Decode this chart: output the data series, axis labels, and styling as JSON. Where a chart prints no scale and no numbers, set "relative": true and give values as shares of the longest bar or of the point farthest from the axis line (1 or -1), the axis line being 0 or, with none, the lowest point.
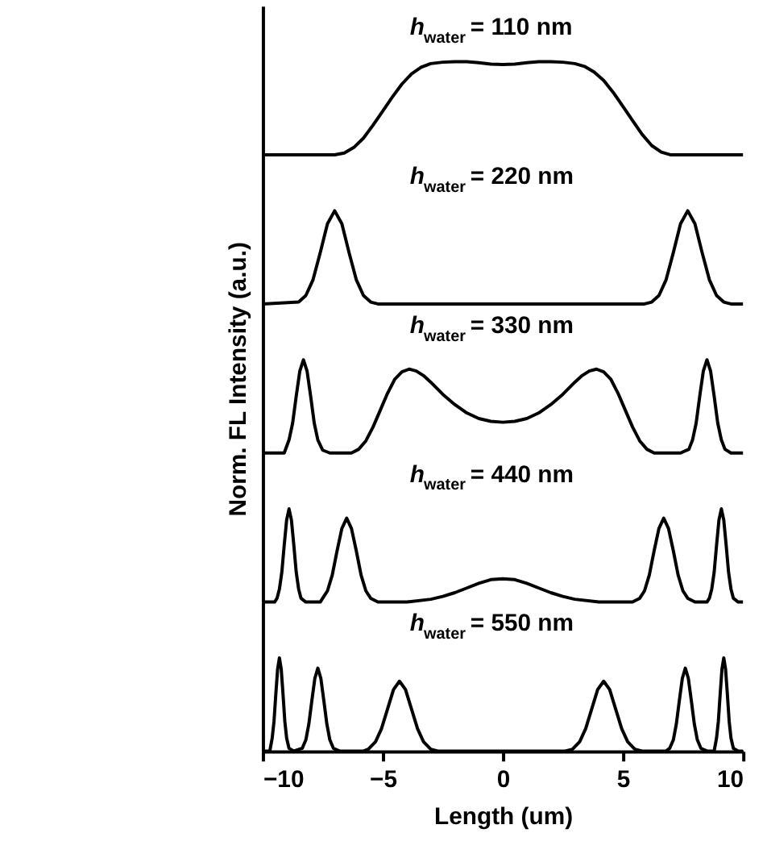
{
  "chart_data": [
    {
      "type": "line",
      "relative": true,
      "title": "h$_{water}$ = 110 nm",
      "color": "#000000",
      "xlim": [
        -10,
        10
      ],
      "tick_labels": false,
      "grid": false,
      "x": [
        -10,
        -7,
        -6.6,
        -6.2,
        -5.8,
        -5.4,
        -5,
        -4.6,
        -4.2,
        -3.8,
        -3.4,
        -3,
        -2.5,
        -2,
        -1.5,
        -1,
        -0.5,
        0,
        0.5,
        1,
        1.5,
        2,
        2.5,
        3,
        3.4,
        3.8,
        4.2,
        4.6,
        5,
        5.4,
        5.8,
        6.2,
        6.6,
        7,
        10
      ],
      "values": [
        0,
        0,
        0.02,
        0.08,
        0.18,
        0.32,
        0.47,
        0.62,
        0.76,
        0.87,
        0.94,
        0.98,
        0.995,
        1,
        1,
        0.99,
        0.975,
        0.97,
        0.975,
        0.99,
        1,
        1,
        0.995,
        0.98,
        0.95,
        0.89,
        0.8,
        0.67,
        0.52,
        0.37,
        0.22,
        0.1,
        0.03,
        0,
        0
      ]
    },
    {
      "type": "line",
      "relative": true,
      "title": "h$_{water}$ = 220 nm",
      "color": "#000000",
      "xlim": [
        -10,
        10
      ],
      "tick_labels": false,
      "grid": false,
      "x": [
        -10,
        -8.5,
        -8.2,
        -7.9,
        -7.6,
        -7.3,
        -7,
        -6.7,
        -6.4,
        -6.1,
        -5.8,
        -5.5,
        -5.2,
        5.9,
        6.2,
        6.5,
        6.8,
        7.1,
        7.4,
        7.7,
        8,
        8.3,
        8.6,
        8.9,
        9.2,
        9.5,
        10
      ],
      "values": [
        0,
        0.02,
        0.09,
        0.26,
        0.55,
        0.86,
        1,
        0.86,
        0.55,
        0.26,
        0.09,
        0.02,
        0,
        0,
        0.02,
        0.09,
        0.26,
        0.55,
        0.86,
        1,
        0.86,
        0.55,
        0.26,
        0.09,
        0.02,
        0,
        0
      ]
    },
    {
      "type": "line",
      "relative": true,
      "title": "h$_{water}$ = 330 nm",
      "ylabel": "Norm. FL Intensity (a.u.)",
      "color": "#000000",
      "xlim": [
        -10,
        10
      ],
      "tick_labels": false,
      "grid": false,
      "x": [
        -10,
        -9.1,
        -8.9,
        -8.75,
        -8.6,
        -8.45,
        -8.3,
        -8.15,
        -8,
        -7.85,
        -7.7,
        -7.5,
        -7.2,
        -6.3,
        -6,
        -5.7,
        -5.4,
        -5.1,
        -4.8,
        -4.5,
        -4.2,
        -3.9,
        -3.6,
        -3.3,
        -3,
        -2.5,
        -2,
        -1.5,
        -1,
        -0.5,
        0,
        0.5,
        1,
        1.5,
        2,
        2.5,
        3,
        3.3,
        3.6,
        3.9,
        4.2,
        4.5,
        4.8,
        5.1,
        5.4,
        5.7,
        6,
        6.3,
        7.4,
        7.75,
        7.9,
        8.05,
        8.2,
        8.35,
        8.5,
        8.65,
        8.8,
        8.95,
        9.1,
        9.25,
        9.5,
        10
      ],
      "values": [
        0,
        0,
        0.14,
        0.32,
        0.61,
        0.88,
        1,
        0.88,
        0.61,
        0.32,
        0.14,
        0.03,
        0,
        0,
        0.04,
        0.13,
        0.28,
        0.46,
        0.64,
        0.79,
        0.87,
        0.9,
        0.88,
        0.83,
        0.76,
        0.63,
        0.52,
        0.43,
        0.37,
        0.34,
        0.33,
        0.34,
        0.37,
        0.43,
        0.52,
        0.63,
        0.76,
        0.83,
        0.88,
        0.9,
        0.87,
        0.79,
        0.64,
        0.46,
        0.28,
        0.13,
        0.04,
        0,
        0,
        0.04,
        0.14,
        0.32,
        0.61,
        0.88,
        1,
        0.88,
        0.61,
        0.32,
        0.14,
        0.04,
        0,
        0
      ]
    },
    {
      "type": "line",
      "relative": true,
      "title": "h$_{water}$ = 440 nm",
      "color": "#000000",
      "xlim": [
        -10,
        10
      ],
      "tick_labels": false,
      "grid": false,
      "x": [
        -10,
        -9.5,
        -9.4,
        -9.3,
        -9.2,
        -9.1,
        -9,
        -8.9,
        -8.8,
        -8.7,
        -8.6,
        -8.5,
        -8.4,
        -8.2,
        -7.6,
        -7.5,
        -7.3,
        -7.1,
        -6.9,
        -6.7,
        -6.5,
        -6.3,
        -6.1,
        -5.9,
        -5.7,
        -5.5,
        -5.2,
        -4,
        -3,
        -2.5,
        -2,
        -1.5,
        -1,
        -0.5,
        0,
        0.5,
        1,
        1.5,
        2,
        2.5,
        3,
        4,
        5.4,
        5.7,
        5.9,
        6.1,
        6.3,
        6.5,
        6.7,
        6.9,
        7.1,
        7.3,
        7.5,
        7.7,
        8,
        8.5,
        8.6,
        8.7,
        8.8,
        8.9,
        9,
        9.1,
        9.2,
        9.3,
        9.4,
        9.5,
        9.6,
        9.8,
        10
      ],
      "values": [
        0,
        0,
        0.04,
        0.14,
        0.32,
        0.61,
        0.88,
        1,
        0.88,
        0.61,
        0.32,
        0.14,
        0.04,
        0,
        0,
        0.04,
        0.12,
        0.29,
        0.55,
        0.79,
        0.9,
        0.79,
        0.55,
        0.29,
        0.12,
        0.04,
        0,
        0,
        0.03,
        0.06,
        0.1,
        0.15,
        0.2,
        0.24,
        0.25,
        0.24,
        0.2,
        0.15,
        0.1,
        0.06,
        0.03,
        0,
        0,
        0.04,
        0.12,
        0.29,
        0.55,
        0.79,
        0.9,
        0.79,
        0.55,
        0.29,
        0.12,
        0.04,
        0,
        0,
        0.04,
        0.14,
        0.32,
        0.61,
        0.88,
        1,
        0.88,
        0.61,
        0.32,
        0.14,
        0.04,
        0,
        0
      ]
    },
    {
      "type": "line",
      "relative": true,
      "title": "h$_{water}$ = 550 nm",
      "xlabel": "Length (um)",
      "color": "#000000",
      "xlim": [
        -10,
        10
      ],
      "xticks": [
        -10,
        -5,
        0,
        5,
        10
      ],
      "tick_labels": "x",
      "grid": false,
      "x": [
        -10,
        -9.7,
        -9.6,
        -9.525,
        -9.45,
        -9.375,
        -9.3,
        -9.225,
        -9.15,
        -9.075,
        -9,
        -8.9,
        -8.7,
        -8.35,
        -8.2,
        -8.075,
        -7.95,
        -7.825,
        -7.7,
        -7.575,
        -7.45,
        -7.325,
        -7.2,
        -7.05,
        -6.8,
        -5.8,
        -5.6,
        -5.3,
        -5.05,
        -4.8,
        -4.55,
        -4.3,
        -4.05,
        -3.8,
        -3.55,
        -3.3,
        -3,
        -2.7,
        2.6,
        2.9,
        3.2,
        3.45,
        3.7,
        3.95,
        4.2,
        4.45,
        4.7,
        4.95,
        5.2,
        5.5,
        5.8,
        6.8,
        6.95,
        7.1,
        7.225,
        7.35,
        7.475,
        7.6,
        7.725,
        7.85,
        7.975,
        8.1,
        8.25,
        8.5,
        8.8,
        8.9,
        8.975,
        9.05,
        9.125,
        9.2,
        9.275,
        9.35,
        9.425,
        9.5,
        9.6,
        9.8,
        10
      ],
      "values": [
        0,
        0,
        0.14,
        0.32,
        0.61,
        0.88,
        1,
        0.88,
        0.61,
        0.32,
        0.14,
        0.03,
        0,
        0.03,
        0.12,
        0.29,
        0.54,
        0.78,
        0.89,
        0.78,
        0.54,
        0.29,
        0.12,
        0.03,
        0,
        0,
        0.02,
        0.1,
        0.24,
        0.45,
        0.66,
        0.75,
        0.66,
        0.45,
        0.24,
        0.1,
        0.02,
        0,
        0,
        0.02,
        0.1,
        0.24,
        0.45,
        0.66,
        0.75,
        0.66,
        0.45,
        0.24,
        0.1,
        0.02,
        0,
        0,
        0.03,
        0.12,
        0.29,
        0.54,
        0.78,
        0.89,
        0.78,
        0.54,
        0.29,
        0.12,
        0.03,
        0,
        0,
        0.14,
        0.32,
        0.61,
        0.88,
        1,
        0.88,
        0.61,
        0.32,
        0.14,
        0.03,
        0,
        0
      ]
    }
  ]
}
